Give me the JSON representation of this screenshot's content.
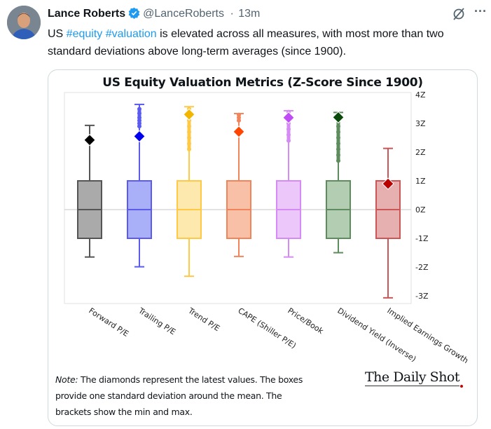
{
  "tweet": {
    "author_name": "Lance Roberts",
    "handle": "@LanceRoberts",
    "separator": "·",
    "time": "13m",
    "text_prefix": "US ",
    "hashtags": [
      "#equity",
      "#valuation"
    ],
    "text_suffix": " is elevated across all measures, with most more than two standard deviations above long-term averages (since 1900).",
    "icons": [
      "avatar",
      "verified-badge-icon",
      "grok-icon",
      "more-icon"
    ],
    "accent_color": "#1d9bf0"
  },
  "chart_data": {
    "type": "box",
    "title": "US Equity Valuation Metrics (Z-Score Since 1900)",
    "ylim": [
      -3.3,
      4
    ],
    "yticks": [
      4,
      3,
      2,
      1,
      0,
      -1,
      -2,
      -3
    ],
    "ytick_labels": [
      "4Z",
      "3Z",
      "2Z",
      "1Z",
      "0Z",
      "-1Z",
      "-2Z",
      "-3Z"
    ],
    "grid": false,
    "categories": [
      "Forward P/E",
      "Trailing P/E",
      "Trend P/E",
      "CAPE (Shiller P/E)",
      "Price/Book",
      "Dividend Yield (Inverse)",
      "Implied Earnings Growth"
    ],
    "series": [
      {
        "category": "Forward P/E",
        "mean": 0,
        "box": [
          -1,
          1
        ],
        "min": -1.65,
        "max": 2.93,
        "latest": 2.42,
        "outliers": [],
        "color": "#555555",
        "fill": "#aaaaaa",
        "latest_color": "#000000"
      },
      {
        "category": "Trailing P/E",
        "mean": 0,
        "box": [
          -1,
          1
        ],
        "min": -1.99,
        "max": 3.66,
        "latest": 2.55,
        "outliers": [
          2.9,
          3.0,
          3.1,
          3.2,
          3.35,
          3.5
        ],
        "color": "#5b5bf0",
        "fill": "#aab0f7",
        "latest_color": "#0000ee"
      },
      {
        "category": "Trend P/E",
        "mean": 0,
        "box": [
          -1,
          1
        ],
        "min": -2.32,
        "max": 3.58,
        "latest": 3.31,
        "outliers": [
          2.1,
          2.3,
          2.5,
          2.7,
          2.9,
          3.1,
          3.3,
          3.5
        ],
        "color": "#ffc845",
        "fill": "#fde8ae",
        "latest_color": "#f2b600"
      },
      {
        "category": "CAPE (Shiller P/E)",
        "mean": 0,
        "box": [
          -1,
          1
        ],
        "min": -1.63,
        "max": 3.34,
        "latest": 2.71,
        "outliers": [
          3.1,
          3.2,
          3.3
        ],
        "color": "#f0845a",
        "fill": "#f8c0a6",
        "latest_color": "#ff4500"
      },
      {
        "category": "Price/Book",
        "mean": 0,
        "box": [
          -1,
          1
        ],
        "min": -1.65,
        "max": 3.44,
        "latest": 3.2,
        "outliers": [
          2.4,
          2.6,
          2.8,
          3.0,
          3.3,
          3.4
        ],
        "color": "#d68af5",
        "fill": "#ecc8fa",
        "latest_color": "#c04cf5"
      },
      {
        "category": "Dividend Yield (Inverse)",
        "mean": 0,
        "box": [
          -1,
          1
        ],
        "min": -1.5,
        "max": 3.38,
        "latest": 3.21,
        "outliers": [
          1.7,
          1.9,
          2.1,
          2.3,
          2.5,
          2.7,
          2.9,
          3.1,
          3.3
        ],
        "color": "#5e8c5e",
        "fill": "#b3cdb3",
        "latest_color": "#0b4a0b"
      },
      {
        "category": "Implied Earnings Growth",
        "mean": 0,
        "box": [
          -1,
          1
        ],
        "min": -3.07,
        "max": 2.13,
        "latest": 0.9,
        "outliers": [],
        "color": "#cc5555",
        "fill": "#e6b0b0",
        "latest_color": "#bb0000"
      }
    ],
    "annotation": {
      "note_label": "Note:",
      "note_text": "The diamonds represent the latest values. The boxes provide one standard deviation around the mean. The brackets show the min and max."
    },
    "source_logo": "The Daily Shot"
  }
}
